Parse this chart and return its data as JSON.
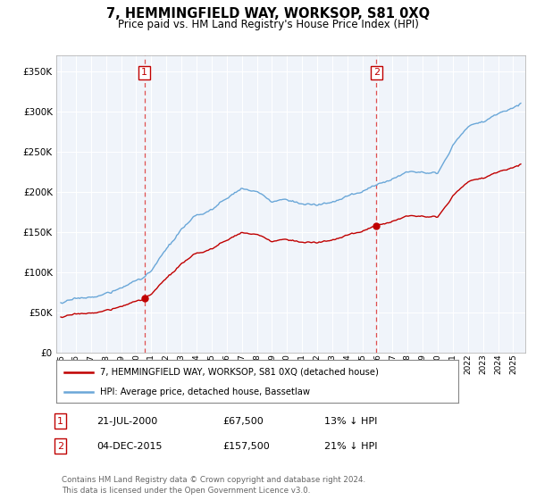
{
  "title": "7, HEMMINGFIELD WAY, WORKSOP, S81 0XQ",
  "subtitle": "Price paid vs. HM Land Registry's House Price Index (HPI)",
  "legend_line1": "7, HEMMINGFIELD WAY, WORKSOP, S81 0XQ (detached house)",
  "legend_line2": "HPI: Average price, detached house, Bassetlaw",
  "sale1_date": "21-JUL-2000",
  "sale1_price": 67500,
  "sale1_year": 2000.55,
  "sale2_date": "04-DEC-2015",
  "sale2_price": 157500,
  "sale2_year": 2015.92,
  "table1": [
    "1",
    "21-JUL-2000",
    "£67,500",
    "13% ↓ HPI"
  ],
  "table2": [
    "2",
    "04-DEC-2015",
    "£157,500",
    "21% ↓ HPI"
  ],
  "footnote": "Contains HM Land Registry data © Crown copyright and database right 2024.\nThis data is licensed under the Open Government Licence v3.0.",
  "hpi_color": "#6aa7d8",
  "price_color": "#c00000",
  "vline_color": "#e05050",
  "background": "#f0f4fa",
  "ylim": [
    0,
    370000
  ],
  "xlim_start": 1994.7,
  "xlim_end": 2025.8
}
